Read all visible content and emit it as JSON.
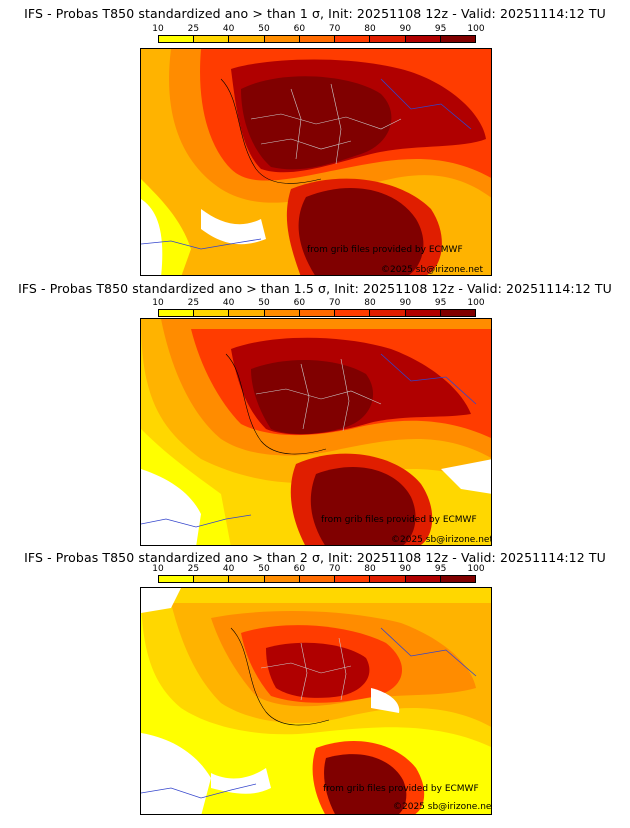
{
  "colorbar": {
    "ticks": [
      "10",
      "25",
      "40",
      "50",
      "60",
      "70",
      "80",
      "90",
      "95",
      "100"
    ],
    "colors": [
      "#ffff00",
      "#ffd700",
      "#ffb300",
      "#ff8c00",
      "#ff6a00",
      "#ff3c00",
      "#e01e00",
      "#b00000",
      "#800000"
    ]
  },
  "credit_text": "from grib files provided by ECMWF",
  "copyright_text": "©2025 sb@irizone.net",
  "panels": [
    {
      "title": "IFS - Probas T850  standardized ano > than 1 σ, Init: 20251108 12z - Valid: 20251114:12 TU"
    },
    {
      "title": "IFS - Probas T850  standardized ano > than 1.5 σ, Init: 20251108 12z - Valid: 20251114:12 TU"
    },
    {
      "title": "IFS - Probas T850  standardized ano > than 2 σ, Init: 20251108 12z - Valid: 20251114:12 TU"
    }
  ]
}
